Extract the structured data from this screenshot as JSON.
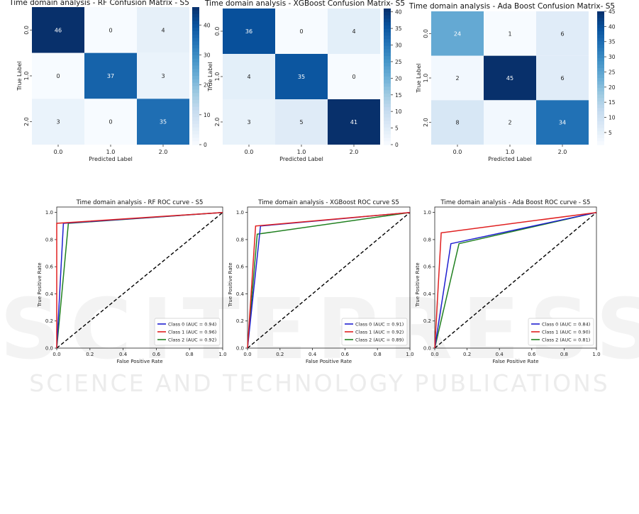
{
  "watermark": {
    "line1": "SCITEPRESS",
    "line2": "SCIENCE AND TECHNOLOGY PUBLICATIONS"
  },
  "colors": {
    "class0": "#1f1fd0",
    "class1": "#e02020",
    "class2": "#208020",
    "diagonal": "#000000"
  },
  "chart_data": [
    {
      "type": "heatmap",
      "title": "Time domain analysis - RF Confusion Matrix - S5",
      "xlabel": "Predicted Label",
      "ylabel": "True Label",
      "x_ticks": [
        "0.0",
        "1.0",
        "2.0"
      ],
      "y_ticks": [
        "0.0",
        "1.0",
        "2.0"
      ],
      "matrix": [
        [
          46,
          0,
          4
        ],
        [
          0,
          37,
          3
        ],
        [
          3,
          0,
          35
        ]
      ],
      "colorbar_range": [
        0,
        46
      ],
      "colorbar_ticks": [
        0,
        10,
        20,
        30,
        40
      ]
    },
    {
      "type": "heatmap",
      "title": "Time domain analysis - XGBoost Confusion Matrix- S5",
      "xlabel": "Predicted Label",
      "ylabel": "True Label",
      "x_ticks": [
        "0.0",
        "1.0",
        "2.0"
      ],
      "y_ticks": [
        "0.0",
        "1.0",
        "2.0"
      ],
      "matrix": [
        [
          36,
          0,
          4
        ],
        [
          4,
          35,
          0
        ],
        [
          3,
          5,
          41
        ]
      ],
      "colorbar_range": [
        0,
        41
      ],
      "colorbar_ticks": [
        0,
        5,
        10,
        15,
        20,
        25,
        30,
        35,
        40
      ]
    },
    {
      "type": "heatmap",
      "title": "Time domain analysis - Ada Boost Confusion Matrix- S5",
      "xlabel": "Predicted Label",
      "ylabel": "True Label",
      "x_ticks": [
        "0.0",
        "1.0",
        "2.0"
      ],
      "y_ticks": [
        "0.0",
        "1.0",
        "2.0"
      ],
      "matrix": [
        [
          24,
          1,
          6
        ],
        [
          2,
          45,
          6
        ],
        [
          8,
          2,
          34
        ]
      ],
      "colorbar_range": [
        1,
        45
      ],
      "colorbar_ticks": [
        5,
        10,
        15,
        20,
        25,
        30,
        35,
        40,
        45
      ]
    },
    {
      "type": "line",
      "title": "Time domain analysis - RF ROC curve - S5",
      "xlabel": "False Positive Rate",
      "ylabel": "True Positive Rate",
      "xlim": [
        0,
        1
      ],
      "ylim": [
        0,
        1.04
      ],
      "x_ticks": [
        "0.0",
        "0.2",
        "0.4",
        "0.6",
        "0.8",
        "1.0"
      ],
      "y_ticks": [
        "0.0",
        "0.2",
        "0.4",
        "0.6",
        "0.8",
        "1.0"
      ],
      "legend_position": "lower-right",
      "series": [
        {
          "name": "Class 0 (AUC = 0.94)",
          "x": [
            0,
            0.04,
            1
          ],
          "y": [
            0,
            0.92,
            1
          ]
        },
        {
          "name": "Class 1 (AUC = 0.96)",
          "x": [
            0,
            0,
            1
          ],
          "y": [
            0,
            0.92,
            1
          ]
        },
        {
          "name": "Class 2 (AUC = 0.92)",
          "x": [
            0,
            0.07,
            1
          ],
          "y": [
            0,
            0.92,
            1
          ]
        }
      ]
    },
    {
      "type": "line",
      "title": "Time domain analysis - XGBoost ROC curve S5",
      "xlabel": "False Positive Rate",
      "ylabel": "True Positive Rate",
      "xlim": [
        0,
        1
      ],
      "ylim": [
        0,
        1.04
      ],
      "x_ticks": [
        "0.0",
        "0.2",
        "0.4",
        "0.6",
        "0.8",
        "1.0"
      ],
      "y_ticks": [
        "0.0",
        "0.2",
        "0.4",
        "0.6",
        "0.8",
        "1.0"
      ],
      "legend_position": "lower-right",
      "series": [
        {
          "name": "Class 0 (AUC = 0.91)",
          "x": [
            0,
            0.08,
            1
          ],
          "y": [
            0,
            0.9,
            1
          ]
        },
        {
          "name": "Class 1 (AUC = 0.92)",
          "x": [
            0,
            0.05,
            1
          ],
          "y": [
            0,
            0.9,
            1
          ]
        },
        {
          "name": "Class 2 (AUC = 0.89)",
          "x": [
            0,
            0.06,
            1
          ],
          "y": [
            0,
            0.84,
            1
          ]
        }
      ]
    },
    {
      "type": "line",
      "title": "Time domain analysis - Ada Boost ROC curve - S5",
      "xlabel": "False Positive Rate",
      "ylabel": "True Positive Rate",
      "xlim": [
        0,
        1
      ],
      "ylim": [
        0,
        1.04
      ],
      "x_ticks": [
        "0.0",
        "0.2",
        "0.4",
        "0.6",
        "0.8",
        "1.0"
      ],
      "y_ticks": [
        "0.0",
        "0.2",
        "0.4",
        "0.6",
        "0.8",
        "1.0"
      ],
      "legend_position": "lower-right",
      "series": [
        {
          "name": "Class 0 (AUC = 0.84)",
          "x": [
            0,
            0.1,
            1
          ],
          "y": [
            0,
            0.77,
            1
          ]
        },
        {
          "name": "Class 1 (AUC = 0.90)",
          "x": [
            0,
            0.04,
            1
          ],
          "y": [
            0,
            0.85,
            1
          ]
        },
        {
          "name": "Class 2 (AUC = 0.81)",
          "x": [
            0,
            0.15,
            1
          ],
          "y": [
            0,
            0.77,
            1
          ]
        }
      ]
    }
  ]
}
